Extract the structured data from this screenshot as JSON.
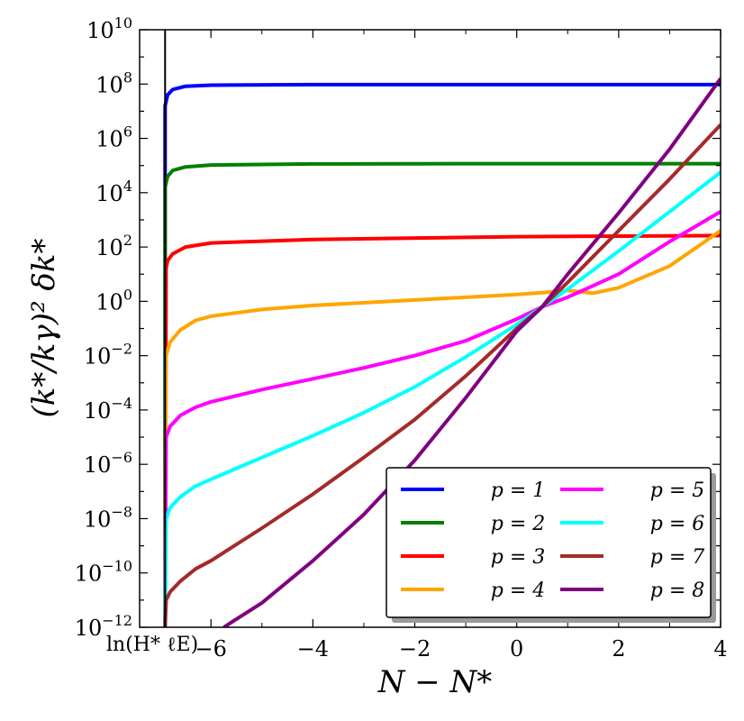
{
  "chart_data": {
    "type": "line",
    "xlabel": "N − N*",
    "ylabel": "(k*/kγ)² δk*",
    "xlim": [
      -7.4,
      4
    ],
    "ylim": [
      -12,
      10
    ],
    "yscale": "log",
    "x_ticks": [
      {
        "value": -6,
        "label": "−6"
      },
      {
        "value": -4,
        "label": "−4"
      },
      {
        "value": -2,
        "label": "−2"
      },
      {
        "value": 0,
        "label": "0"
      },
      {
        "value": 2,
        "label": "2"
      },
      {
        "value": 4,
        "label": "4"
      }
    ],
    "y_ticks": [
      {
        "exp": 10,
        "label": "10",
        "sup": "10"
      },
      {
        "exp": 8,
        "label": "10",
        "sup": "8"
      },
      {
        "exp": 6,
        "label": "10",
        "sup": "6"
      },
      {
        "exp": 4,
        "label": "10",
        "sup": "4"
      },
      {
        "exp": 2,
        "label": "10",
        "sup": "2"
      },
      {
        "exp": 0,
        "label": "10",
        "sup": "0"
      },
      {
        "exp": -2,
        "label": "10",
        "sup": "−2"
      },
      {
        "exp": -4,
        "label": "10",
        "sup": "−4"
      },
      {
        "exp": -6,
        "label": "10",
        "sup": "−6"
      },
      {
        "exp": -8,
        "label": "10",
        "sup": "−8"
      },
      {
        "exp": -10,
        "label": "10",
        "sup": "−10"
      },
      {
        "exp": -12,
        "label": "10",
        "sup": "−12"
      }
    ],
    "vline": {
      "x": -6.9,
      "label": "ln(H* ℓE)"
    },
    "series": [
      {
        "name": "p = 1",
        "color": "#0000ff",
        "points": [
          [
            -6.9,
            -12
          ],
          [
            -6.9,
            7.2
          ],
          [
            -6.85,
            7.6
          ],
          [
            -6.75,
            7.8
          ],
          [
            -6.5,
            7.92
          ],
          [
            -6,
            7.96
          ],
          [
            -4,
            7.98
          ],
          [
            0,
            7.98
          ],
          [
            4,
            7.98
          ]
        ]
      },
      {
        "name": "p = 2",
        "color": "#008000",
        "points": [
          [
            -6.9,
            -12
          ],
          [
            -6.9,
            4.2
          ],
          [
            -6.85,
            4.6
          ],
          [
            -6.75,
            4.82
          ],
          [
            -6.5,
            4.95
          ],
          [
            -6,
            5.02
          ],
          [
            -4,
            5.06
          ],
          [
            0,
            5.07
          ],
          [
            4,
            5.07
          ]
        ]
      },
      {
        "name": "p = 3",
        "color": "#ff0000",
        "points": [
          [
            -6.9,
            -12
          ],
          [
            -6.88,
            1.2
          ],
          [
            -6.85,
            1.5
          ],
          [
            -6.75,
            1.75
          ],
          [
            -6.5,
            2.0
          ],
          [
            -6,
            2.15
          ],
          [
            -4,
            2.28
          ],
          [
            0,
            2.38
          ],
          [
            2,
            2.4
          ],
          [
            4,
            2.42
          ]
        ]
      },
      {
        "name": "p = 4",
        "color": "#ffa500",
        "points": [
          [
            -6.9,
            -12
          ],
          [
            -6.88,
            -2.0
          ],
          [
            -6.8,
            -1.5
          ],
          [
            -6.6,
            -1.05
          ],
          [
            -6.3,
            -0.7
          ],
          [
            -6,
            -0.55
          ],
          [
            -5,
            -0.3
          ],
          [
            -4,
            -0.15
          ],
          [
            -2,
            0.05
          ],
          [
            0,
            0.25
          ],
          [
            0.5,
            0.32
          ],
          [
            1,
            0.4
          ],
          [
            1.5,
            0.3
          ],
          [
            2,
            0.5
          ],
          [
            3,
            1.3
          ],
          [
            4,
            2.6
          ]
        ]
      },
      {
        "name": "p = 5",
        "color": "#ff00ff",
        "points": [
          [
            -6.9,
            -12
          ],
          [
            -6.88,
            -5.0
          ],
          [
            -6.8,
            -4.6
          ],
          [
            -6.6,
            -4.2
          ],
          [
            -6.3,
            -3.9
          ],
          [
            -6,
            -3.7
          ],
          [
            -5,
            -3.25
          ],
          [
            -4,
            -2.85
          ],
          [
            -3,
            -2.45
          ],
          [
            -2,
            -2.0
          ],
          [
            -1,
            -1.45
          ],
          [
            0,
            -0.65
          ],
          [
            0.5,
            -0.2
          ],
          [
            1,
            0.15
          ],
          [
            2,
            1.0
          ],
          [
            3,
            2.2
          ],
          [
            4,
            3.3
          ]
        ]
      },
      {
        "name": "p = 6",
        "color": "#00ffff",
        "points": [
          [
            -6.9,
            -12
          ],
          [
            -6.88,
            -8.0
          ],
          [
            -6.8,
            -7.6
          ],
          [
            -6.6,
            -7.2
          ],
          [
            -6.3,
            -6.8
          ],
          [
            -6,
            -6.55
          ],
          [
            -5,
            -5.75
          ],
          [
            -4,
            -4.95
          ],
          [
            -3,
            -4.1
          ],
          [
            -2,
            -3.15
          ],
          [
            -1,
            -2.05
          ],
          [
            0,
            -0.85
          ],
          [
            0.5,
            -0.2
          ],
          [
            1,
            0.45
          ],
          [
            2,
            1.85
          ],
          [
            3,
            3.3
          ],
          [
            4,
            4.75
          ]
        ]
      },
      {
        "name": "p = 7",
        "color": "#a52a2a",
        "points": [
          [
            -6.9,
            -12
          ],
          [
            -6.88,
            -11.0
          ],
          [
            -6.8,
            -10.7
          ],
          [
            -6.6,
            -10.3
          ],
          [
            -6.3,
            -9.85
          ],
          [
            -6,
            -9.55
          ],
          [
            -5,
            -8.35
          ],
          [
            -4,
            -7.1
          ],
          [
            -3,
            -5.75
          ],
          [
            -2,
            -4.35
          ],
          [
            -1,
            -2.75
          ],
          [
            0,
            -1.0
          ],
          [
            0.5,
            -0.2
          ],
          [
            1,
            0.7
          ],
          [
            2,
            2.6
          ],
          [
            3,
            4.5
          ],
          [
            4,
            6.5
          ]
        ]
      },
      {
        "name": "p = 8",
        "color": "#800080",
        "points": [
          [
            -5.75,
            -12
          ],
          [
            -5,
            -11.1
          ],
          [
            -4,
            -9.55
          ],
          [
            -3,
            -7.85
          ],
          [
            -2,
            -5.85
          ],
          [
            -1,
            -3.55
          ],
          [
            0,
            -1.1
          ],
          [
            0.5,
            -0.2
          ],
          [
            1,
            1.0
          ],
          [
            2,
            3.25
          ],
          [
            3,
            5.6
          ],
          [
            4,
            8.2
          ]
        ]
      }
    ],
    "legend": {
      "position": "lower-right",
      "columns": 2
    }
  }
}
